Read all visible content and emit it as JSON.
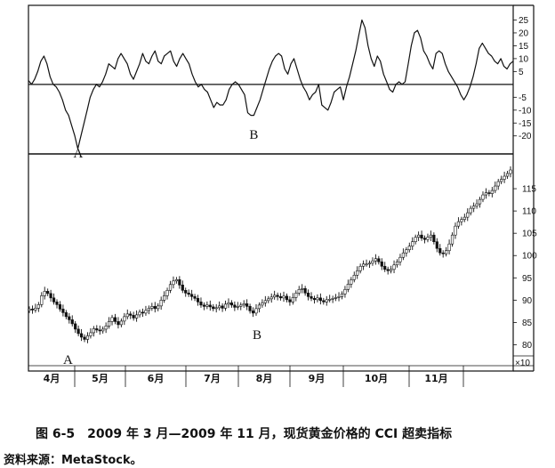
{
  "chart_data": [
    {
      "type": "line",
      "indicator": "CCI",
      "y_ticks": [
        25,
        20,
        15,
        10,
        5,
        -5,
        -10,
        -15,
        -20
      ],
      "ylim": [
        -27,
        30
      ],
      "zero_line": 0,
      "lower_line": -27,
      "series": [
        {
          "values": [
            1.5,
            0,
            2,
            5,
            9,
            11,
            8,
            3,
            0,
            -1,
            -3,
            -6,
            -10,
            -12,
            -16,
            -20,
            -25,
            -20,
            -15,
            -10,
            -5,
            -2,
            0,
            -1,
            1,
            4,
            8,
            7,
            6,
            10,
            12,
            10,
            8,
            4,
            2,
            5,
            8,
            12,
            9,
            8,
            11,
            13,
            9,
            8,
            11,
            12,
            13,
            9,
            7,
            10,
            12,
            10,
            8,
            4,
            1,
            -1,
            0,
            -2,
            -3,
            -6,
            -9,
            -7,
            -8,
            -8,
            -6,
            -2,
            0,
            1,
            0,
            -2,
            -4,
            -11,
            -12,
            -12,
            -9,
            -6,
            -2,
            2,
            6,
            9,
            11,
            12,
            11,
            6,
            4,
            8,
            10,
            6,
            2,
            -1,
            -3,
            -6,
            -4,
            -3,
            0,
            -8,
            -9,
            -10,
            -7,
            -3,
            -2,
            -1,
            -6,
            -1,
            3,
            8,
            13,
            19,
            25,
            22,
            15,
            10,
            7,
            11,
            9,
            4,
            1,
            -2,
            -3,
            0,
            1,
            0,
            1,
            8,
            15,
            20,
            21,
            18,
            13,
            11,
            8,
            6,
            12,
            13,
            12,
            8,
            5,
            3,
            1,
            -1,
            -4,
            -6,
            -4,
            -1,
            3,
            8,
            14,
            16,
            14,
            12,
            11,
            9,
            8,
            10,
            7,
            6,
            8,
            9
          ]
        }
      ],
      "annotations": [
        {
          "label": "A",
          "index": 16
        },
        {
          "label": "B",
          "index": 73
        }
      ]
    },
    {
      "type": "candlestick",
      "y_ticks": [
        115,
        110,
        105,
        100,
        95,
        90,
        85,
        80
      ],
      "ylim": [
        76.5,
        121
      ],
      "scale_note": "×10",
      "x_ticks": [
        "4月",
        "5月",
        "6月",
        "7月",
        "8月",
        "9月",
        "10月",
        "11月"
      ],
      "closes": [
        88,
        87.8,
        88.2,
        89,
        91,
        92,
        91.5,
        90.5,
        89.6,
        89,
        88,
        87.2,
        86.3,
        85.6,
        84.7,
        83.5,
        82.5,
        81.7,
        81.2,
        82,
        82.7,
        83.6,
        83.3,
        83.1,
        83.5,
        84.2,
        85.2,
        86.1,
        85.2,
        84.5,
        85.3,
        86.3,
        86.9,
        86.6,
        86,
        86.7,
        87.3,
        87.1,
        87.7,
        88.2,
        88.6,
        88.1,
        88.7,
        90,
        91,
        92.2,
        93.5,
        94.3,
        94.6,
        93.4,
        92.2,
        91.6,
        91.3,
        90.8,
        90.4,
        89.6,
        88.9,
        88.6,
        88.9,
        88.5,
        88.1,
        88.3,
        88.7,
        88.2,
        89.1,
        89.4,
        88.9,
        88.4,
        88.6,
        88.9,
        89.2,
        88.6,
        87.6,
        87.1,
        88.1,
        88.9,
        89.4,
        89.9,
        90.3,
        90.7,
        91.1,
        90.8,
        90.5,
        90.9,
        90.1,
        89.6,
        90.6,
        91.6,
        92.4,
        92.6,
        91.6,
        90.8,
        90.4,
        90.1,
        90.5,
        89.9,
        89.6,
        90.1,
        90.2,
        90.4,
        90.6,
        90.8,
        91.4,
        92.4,
        93.6,
        94.6,
        95.6,
        96.6,
        97.6,
        98.1,
        98.1,
        98.3,
        98.8,
        99.3,
        98.6,
        97.6,
        96.9,
        96.6,
        96.9,
        97.9,
        98.6,
        99.6,
        100.6,
        101.3,
        102.1,
        103.1,
        104.1,
        104.6,
        103.9,
        103.6,
        104.1,
        104.6,
        103.1,
        101.6,
        100.6,
        100.4,
        101.1,
        102.6,
        104.6,
        106.6,
        107.6,
        108.1,
        108.6,
        109.6,
        110.6,
        111.1,
        111.6,
        112.6,
        113.6,
        114.1,
        113.9,
        114.6,
        115.6,
        116.6,
        117.1,
        117.8,
        118.4,
        119.2
      ]
    }
  ],
  "annotations": {
    "cci_a": "A",
    "cci_b": "B",
    "price_a": "A",
    "price_b": "B"
  },
  "caption": "图 6-5　2009 年 3 月—2009 年 11 月，现货黄金价格的 CCI 超卖指标",
  "source": "资料来源：MetaStock。"
}
